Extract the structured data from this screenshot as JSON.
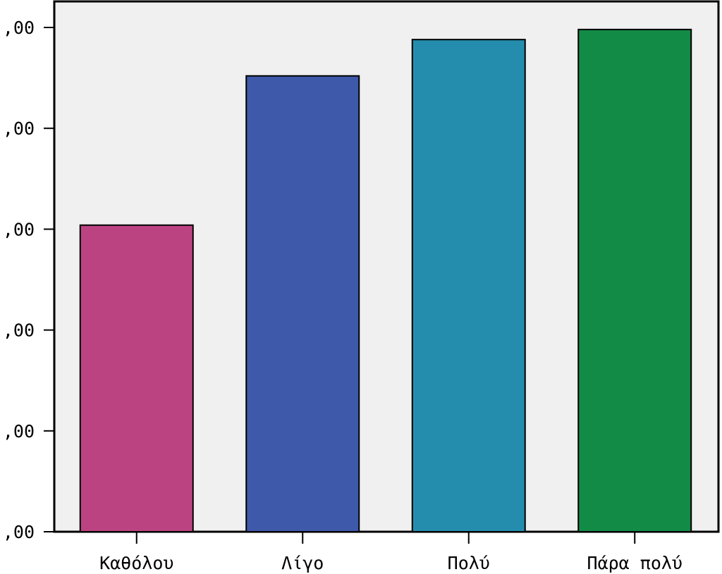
{
  "chart_data": {
    "type": "bar",
    "categories": [
      "Καθόλου",
      "Λίγο",
      "Πολύ",
      "Πάρα πολύ"
    ],
    "values": [
      3.04,
      4.52,
      4.88,
      4.98
    ],
    "ylim": [
      0,
      5
    ],
    "yticks": [
      0,
      1,
      2,
      3,
      4,
      5
    ],
    "ytick_labels": [
      ",00",
      ",00",
      ",00",
      ",00",
      ",00",
      ",00"
    ],
    "colors": [
      "#BC4382",
      "#3F59AA",
      "#248DAD",
      "#128B46"
    ],
    "plot_background": "#F0F0F0",
    "grid": false,
    "legend": "none"
  }
}
